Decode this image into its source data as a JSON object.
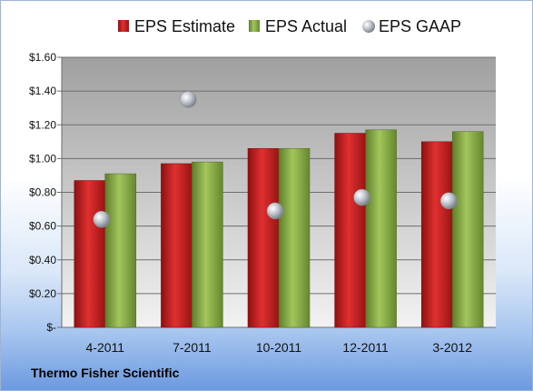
{
  "footer": {
    "company": "Thermo Fisher Scientific"
  },
  "colors": {
    "estimate": "#cc1f1f",
    "actual": "#8db04a",
    "gaap": "#b5b9c2",
    "plot_bg_top": "#a0a0a0",
    "plot_bg_bottom": "#f2f2f2"
  },
  "chart_data": {
    "type": "bar",
    "title": "",
    "xlabel": "",
    "ylabel": "",
    "categories": [
      "4-2011",
      "7-2011",
      "10-2011",
      "12-2011",
      "3-2012"
    ],
    "series": [
      {
        "name": "EPS Estimate",
        "type": "bar",
        "values": [
          0.87,
          0.97,
          1.06,
          1.15,
          1.1
        ]
      },
      {
        "name": "EPS Actual",
        "type": "bar",
        "values": [
          0.91,
          0.98,
          1.06,
          1.17,
          1.16
        ]
      },
      {
        "name": "EPS GAAP",
        "type": "scatter",
        "values": [
          0.64,
          1.35,
          0.69,
          0.77,
          0.75
        ]
      }
    ],
    "ylim": [
      0,
      1.6
    ],
    "yticks": [
      0,
      0.2,
      0.4,
      0.6,
      0.8,
      1.0,
      1.2,
      1.4,
      1.6
    ],
    "ytick_labels": [
      "$-",
      "$0.20",
      "$0.40",
      "$0.60",
      "$0.80",
      "$1.00",
      "$1.20",
      "$1.40",
      "$1.60"
    ],
    "grid": true,
    "legend": "top"
  }
}
